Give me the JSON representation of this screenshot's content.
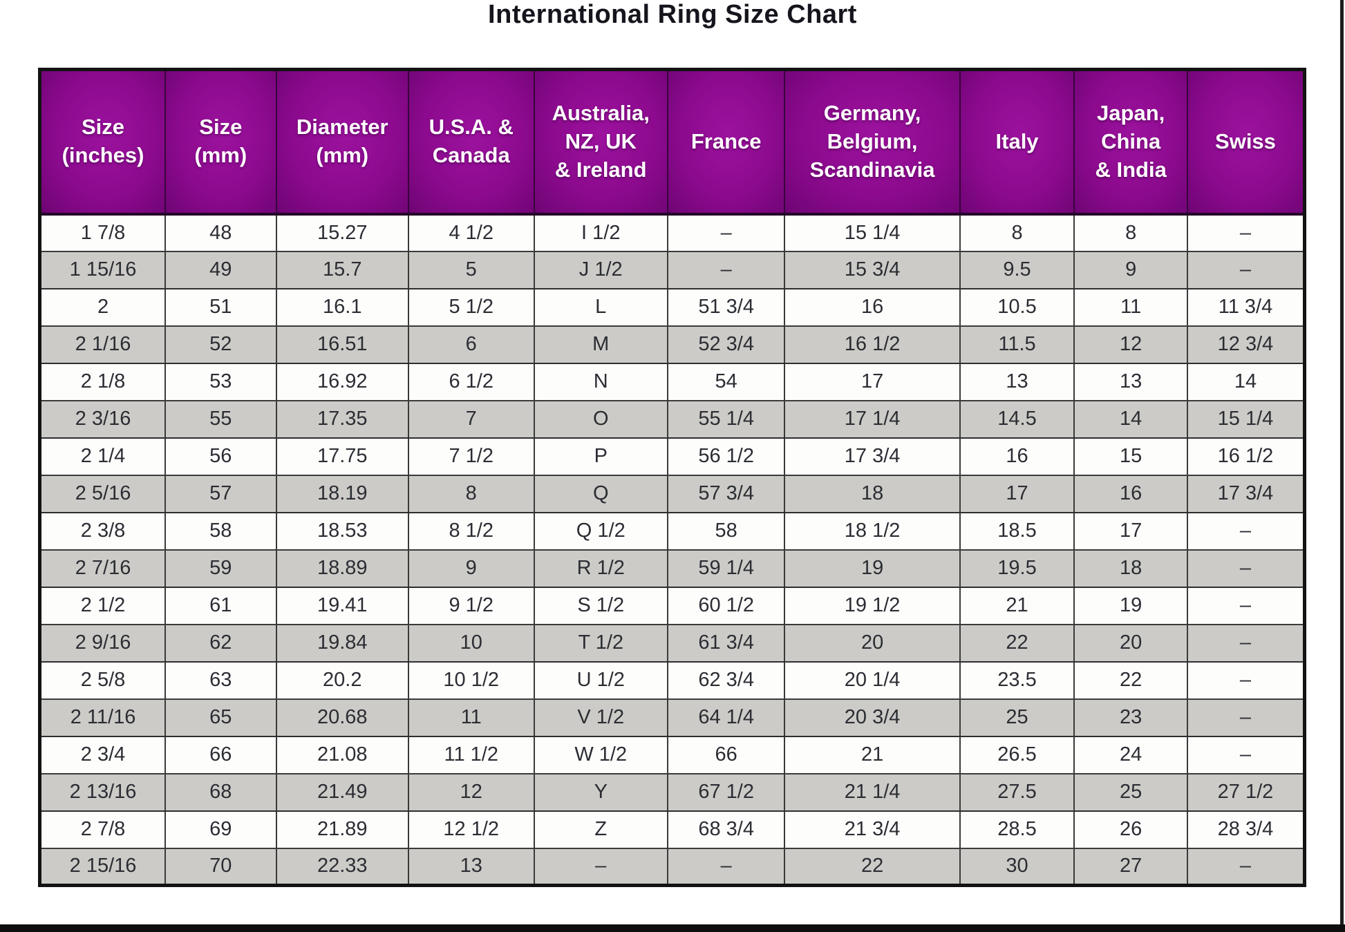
{
  "title": "International Ring Size Chart",
  "colors": {
    "header_purple": "#8c0a8e",
    "row_gray": "#cccbc7",
    "row_white": "#fdfdfc",
    "bottom_bar": "#0e0e0e",
    "header_text": "#ffffff",
    "body_text": "#2b2d33"
  },
  "chart_data": {
    "type": "table",
    "title": "International Ring Size Chart",
    "columns": [
      "Size\n(inches)",
      "Size\n(mm)",
      "Diameter\n(mm)",
      "U.S.A. &\nCanada",
      "Australia,\nNZ, UK\n& Ireland",
      "France",
      "Germany,\nBelgium,\nScandinavia",
      "Italy",
      "Japan,\nChina\n& India",
      "Swiss"
    ],
    "rows": [
      [
        "1 7/8",
        "48",
        "15.27",
        "4 1/2",
        "I 1/2",
        "–",
        "15 1/4",
        "8",
        "8",
        "–"
      ],
      [
        "1 15/16",
        "49",
        "15.7",
        "5",
        "J 1/2",
        "–",
        "15 3/4",
        "9.5",
        "9",
        "–"
      ],
      [
        "2",
        "51",
        "16.1",
        "5 1/2",
        "L",
        "51 3/4",
        "16",
        "10.5",
        "11",
        "11 3/4"
      ],
      [
        "2 1/16",
        "52",
        "16.51",
        "6",
        "M",
        "52 3/4",
        "16 1/2",
        "11.5",
        "12",
        "12 3/4"
      ],
      [
        "2 1/8",
        "53",
        "16.92",
        "6 1/2",
        "N",
        "54",
        "17",
        "13",
        "13",
        "14"
      ],
      [
        "2 3/16",
        "55",
        "17.35",
        "7",
        "O",
        "55 1/4",
        "17 1/4",
        "14.5",
        "14",
        "15 1/4"
      ],
      [
        "2 1/4",
        "56",
        "17.75",
        "7 1/2",
        "P",
        "56 1/2",
        "17 3/4",
        "16",
        "15",
        "16 1/2"
      ],
      [
        "2 5/16",
        "57",
        "18.19",
        "8",
        "Q",
        "57 3/4",
        "18",
        "17",
        "16",
        "17 3/4"
      ],
      [
        "2 3/8",
        "58",
        "18.53",
        "8 1/2",
        "Q 1/2",
        "58",
        "18 1/2",
        "18.5",
        "17",
        "–"
      ],
      [
        "2 7/16",
        "59",
        "18.89",
        "9",
        "R 1/2",
        "59 1/4",
        "19",
        "19.5",
        "18",
        "–"
      ],
      [
        "2 1/2",
        "61",
        "19.41",
        "9 1/2",
        "S 1/2",
        "60 1/2",
        "19 1/2",
        "21",
        "19",
        "–"
      ],
      [
        "2 9/16",
        "62",
        "19.84",
        "10",
        "T 1/2",
        "61 3/4",
        "20",
        "22",
        "20",
        "–"
      ],
      [
        "2 5/8",
        "63",
        "20.2",
        "10 1/2",
        "U 1/2",
        "62 3/4",
        "20 1/4",
        "23.5",
        "22",
        "–"
      ],
      [
        "2 11/16",
        "65",
        "20.68",
        "11",
        "V 1/2",
        "64 1/4",
        "20 3/4",
        "25",
        "23",
        "–"
      ],
      [
        "2 3/4",
        "66",
        "21.08",
        "11 1/2",
        "W 1/2",
        "66",
        "21",
        "26.5",
        "24",
        "–"
      ],
      [
        "2 13/16",
        "68",
        "21.49",
        "12",
        "Y",
        "67 1/2",
        "21 1/4",
        "27.5",
        "25",
        "27 1/2"
      ],
      [
        "2 7/8",
        "69",
        "21.89",
        "12 1/2",
        "Z",
        "68 3/4",
        "21 3/4",
        "28.5",
        "26",
        "28 3/4"
      ],
      [
        "2 15/16",
        "70",
        "22.33",
        "13",
        "–",
        "–",
        "22",
        "30",
        "27",
        "–"
      ]
    ]
  }
}
